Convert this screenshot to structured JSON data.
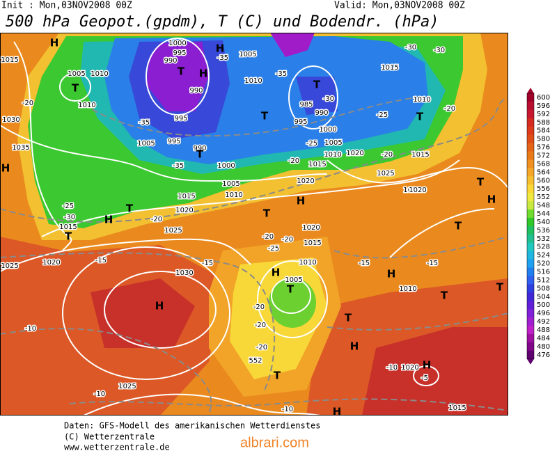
{
  "header": {
    "init": "Init : Mon,03NOV2008 00Z",
    "valid": "Valid: Mon,03NOV2008 00Z",
    "title": "500 hPa Geopot.(gpdm), T (C) und Bodendr. (hPa)"
  },
  "colorbar": {
    "levels": [
      600,
      596,
      592,
      588,
      584,
      580,
      576,
      572,
      568,
      564,
      560,
      556,
      552,
      548,
      544,
      540,
      536,
      532,
      528,
      524,
      520,
      516,
      512,
      508,
      504,
      500,
      496,
      492,
      488,
      484,
      480,
      476
    ],
    "colors": [
      "#a0002a",
      "#b80e30",
      "#c81830",
      "#d42a22",
      "#dc3a1a",
      "#e04e18",
      "#e56418",
      "#ea7a18",
      "#f09020",
      "#f5a828",
      "#f8c030",
      "#fad838",
      "#f0ea40",
      "#c8ea40",
      "#70dc30",
      "#30c828",
      "#20c060",
      "#20c090",
      "#20c8c0",
      "#20b8e0",
      "#20a0f0",
      "#2080f0",
      "#3060f0",
      "#3040e0",
      "#4028d8",
      "#6020d8",
      "#8020d8",
      "#a020d0",
      "#c020c8",
      "#a010a0",
      "#800888",
      "#600070"
    ]
  },
  "map_labels": [
    "H",
    "T",
    "1005",
    "1010",
    "1010",
    "1030",
    "1035",
    "H",
    "1015",
    "-20",
    "1000",
    "995",
    "990",
    "T",
    "H",
    "990",
    "995",
    "-35",
    "1005",
    "995",
    "990",
    "T",
    "-35",
    "1000",
    "-35",
    "H",
    "1005",
    "1010",
    "T",
    "-35",
    "T",
    "-30",
    "985",
    "990",
    "995",
    "1000",
    "1005",
    "1010",
    "1015",
    "-25",
    "-20",
    "1020",
    "H",
    "1005",
    "1010",
    "1015",
    "1020",
    "T",
    "H",
    "-25",
    "-30",
    "1015",
    "T",
    "-20",
    "1025",
    "1020",
    "-15",
    "1025",
    "1030",
    "H",
    "-10",
    "1025",
    "-10",
    "-15",
    "T",
    "-20",
    "-25",
    "-20",
    "1015",
    "1020",
    "1010",
    "1005",
    "T",
    "H",
    "-20",
    "-20",
    "1020",
    "1025",
    "1020",
    "-15",
    "T",
    "H",
    "H",
    "1010",
    "T",
    "-15",
    "T",
    "H",
    "T",
    "T",
    "-20",
    "T",
    "1010",
    "1015",
    "-25",
    "-30",
    "-30",
    "-20",
    "1015",
    "1020",
    "-10",
    "1020",
    "H",
    "-5",
    "1015",
    "-10",
    "H",
    "T",
    "552",
    "-20"
  ],
  "footer": [
    "Daten: GFS-Modell des amerikanischen Wetterdienstes",
    "(C) Wetterzentrale",
    "www.wetterzentrale.de"
  ],
  "watermark": "albrari.com"
}
